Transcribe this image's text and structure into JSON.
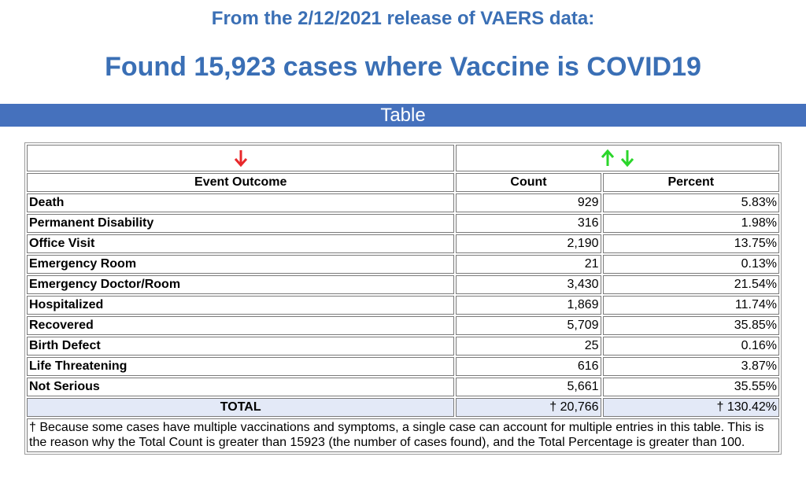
{
  "header": {
    "subtitle": "From the 2/12/2021 release of VAERS data:",
    "title": "Found 15,923 cases where Vaccine is COVID19"
  },
  "section_bar": {
    "label": "Table"
  },
  "table": {
    "sort_icons": {
      "outcome": [
        "arrow-down-red-icon"
      ],
      "count": [
        "arrow-up-green-icon",
        "arrow-down-green-icon"
      ]
    },
    "colors": {
      "red_arrow": "#e8282b",
      "green_arrow": "#2bd62b",
      "total_bg": "#e3e9f7"
    },
    "headers": {
      "outcome": "Event Outcome",
      "count": "Count",
      "percent": "Percent"
    },
    "rows": [
      {
        "outcome": "Death",
        "count": "929",
        "percent": "5.83%"
      },
      {
        "outcome": "Permanent Disability",
        "count": "316",
        "percent": "1.98%"
      },
      {
        "outcome": "Office Visit",
        "count": "2,190",
        "percent": "13.75%"
      },
      {
        "outcome": "Emergency Room",
        "count": "21",
        "percent": "0.13%"
      },
      {
        "outcome": "Emergency Doctor/Room",
        "count": "3,430",
        "percent": "21.54%"
      },
      {
        "outcome": "Hospitalized",
        "count": "1,869",
        "percent": "11.74%"
      },
      {
        "outcome": "Recovered",
        "count": "5,709",
        "percent": "35.85%"
      },
      {
        "outcome": "Birth Defect",
        "count": "25",
        "percent": "0.16%"
      },
      {
        "outcome": "Life Threatening",
        "count": "616",
        "percent": "3.87%"
      },
      {
        "outcome": "Not Serious",
        "count": "5,661",
        "percent": "35.55%"
      }
    ],
    "total": {
      "label": "TOTAL",
      "count": "† 20,766",
      "percent": "† 130.42%"
    },
    "footnote": "† Because some cases have multiple vaccinations and symptoms, a single case can account for multiple entries in this table. This is the reason why the Total Count is greater than 15923 (the number of cases found), and the Total Percentage is greater than 100."
  }
}
